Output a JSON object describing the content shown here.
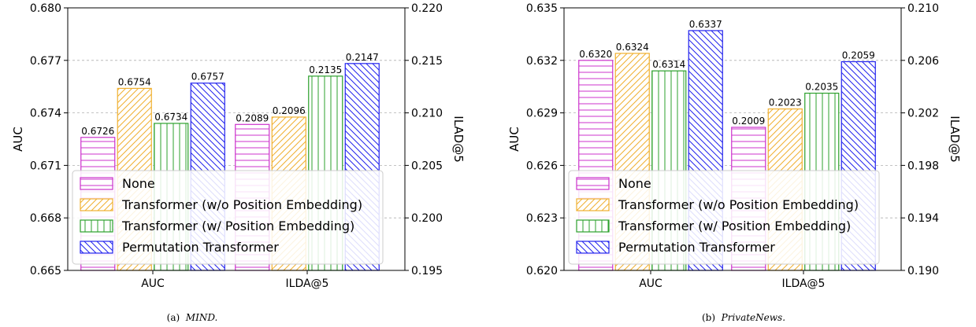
{
  "colors": {
    "None": "#cc33cc",
    "Transformer (w/o Position Embedding)": "#f0b030",
    "Transformer (w/ Position Embedding)": "#2ca02c",
    "Permutation Transformer": "#2222ee"
  },
  "legend_entries": [
    {
      "label": "None",
      "hatch": "horizontal"
    },
    {
      "label": "Transformer (w/o Position Embedding)",
      "hatch": "diagonal"
    },
    {
      "label": "Transformer (w/ Position Embedding)",
      "hatch": "vertical"
    },
    {
      "label": "Permutation Transformer",
      "hatch": "backdiagonal"
    }
  ],
  "chart_data": [
    {
      "type": "bar",
      "caption_prefix": "(a)",
      "caption_name": "MIND.",
      "categories": [
        "AUC",
        "ILDA@5"
      ],
      "ylabel": "AUC",
      "y2label": "ILAD@5",
      "ylim": [
        0.665,
        0.68
      ],
      "y2lim": [
        0.195,
        0.22
      ],
      "yticks": [
        "0.665",
        "0.668",
        "0.671",
        "0.674",
        "0.677",
        "0.680"
      ],
      "y2ticks": [
        "0.195",
        "0.200",
        "0.205",
        "0.210",
        "0.215",
        "0.220"
      ],
      "grid": true,
      "legend_position": "lower-left",
      "series": [
        {
          "name": "None",
          "values": [
            0.6726,
            0.2089
          ],
          "labels": [
            "0.6726",
            "0.2089"
          ]
        },
        {
          "name": "Transformer (w/o Position Embedding)",
          "values": [
            0.6754,
            0.2096
          ],
          "labels": [
            "0.6754",
            "0.2096"
          ]
        },
        {
          "name": "Transformer (w/ Position Embedding)",
          "values": [
            0.6734,
            0.2135
          ],
          "labels": [
            "0.6734",
            "0.2135"
          ]
        },
        {
          "name": "Permutation Transformer",
          "values": [
            0.6757,
            0.2147
          ],
          "labels": [
            "0.6757",
            "0.2147"
          ]
        }
      ]
    },
    {
      "type": "bar",
      "caption_prefix": "(b)",
      "caption_name": "PrivateNews.",
      "categories": [
        "AUC",
        "ILDA@5"
      ],
      "ylabel": "AUC",
      "y2label": "ILAD@5",
      "ylim": [
        0.62,
        0.635
      ],
      "y2lim": [
        0.19,
        0.21
      ],
      "yticks": [
        "0.620",
        "0.623",
        "0.626",
        "0.629",
        "0.632",
        "0.635"
      ],
      "y2ticks": [
        "0.190",
        "0.194",
        "0.198",
        "0.202",
        "0.206",
        "0.210"
      ],
      "grid": true,
      "legend_position": "lower-left",
      "series": [
        {
          "name": "None",
          "values": [
            0.632,
            0.2009
          ],
          "labels": [
            "0.6320",
            "0.2009"
          ]
        },
        {
          "name": "Transformer (w/o Position Embedding)",
          "values": [
            0.6324,
            0.2023
          ],
          "labels": [
            "0.6324",
            "0.2023"
          ]
        },
        {
          "name": "Transformer (w/ Position Embedding)",
          "values": [
            0.6314,
            0.2035
          ],
          "labels": [
            "0.6314",
            "0.2035"
          ]
        },
        {
          "name": "Permutation Transformer",
          "values": [
            0.6337,
            0.2059
          ],
          "labels": [
            "0.6337",
            "0.2059"
          ]
        }
      ]
    }
  ]
}
